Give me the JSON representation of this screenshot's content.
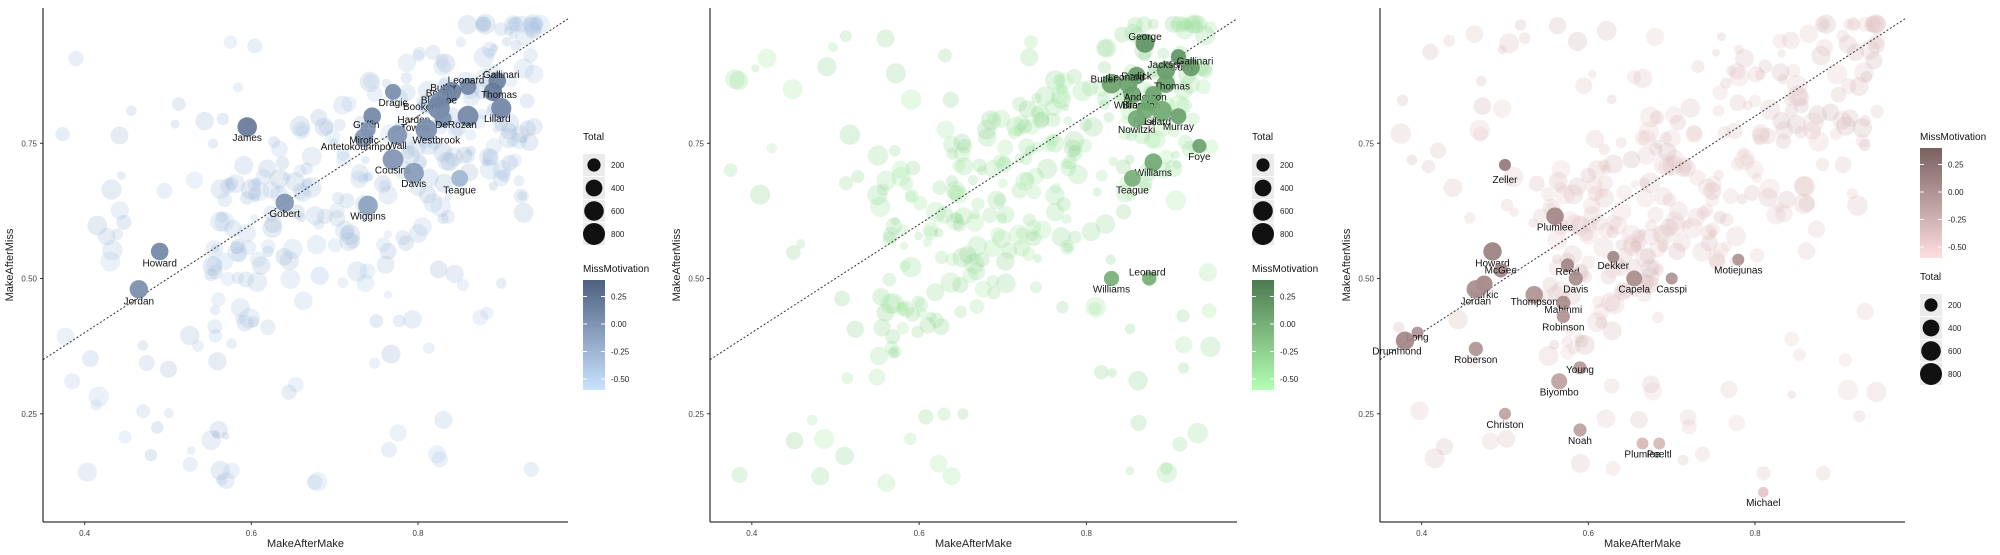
{
  "axis_labels": {
    "x": "MakeAfterMake",
    "y": "MakeAfterMiss"
  },
  "legend_titles": {
    "size": "Total",
    "color": "MissMotivation"
  },
  "chart_data": [
    {
      "type": "scatter",
      "panel": "left",
      "xlabel": "MakeAfterMake",
      "ylabel": "MakeAfterMiss",
      "xlim": [
        0.35,
        0.98
      ],
      "ylim": [
        0.05,
        1.0
      ],
      "x_ticks": [
        "0.4",
        "0.6",
        "0.8"
      ],
      "y_ticks": [
        "0.25",
        "0.50",
        "0.75"
      ],
      "reference_line": "y = x (dotted)",
      "color_scale": {
        "low": "#c9e3ff",
        "high": "#4d6080",
        "breaks": [
          "0.25",
          "0.00",
          "-0.25",
          "-0.50"
        ]
      },
      "size_breaks": [
        "200",
        "400",
        "600",
        "800"
      ],
      "legend_order": [
        "size",
        "color"
      ],
      "labeled_points": [
        {
          "label": "Gallinari",
          "x": 0.895,
          "y": 0.865,
          "total": 450,
          "motivation": 0.15
        },
        {
          "label": "Thomas",
          "x": 0.89,
          "y": 0.845,
          "total": 500,
          "motivation": 0.2
        },
        {
          "label": "Leonard",
          "x": 0.86,
          "y": 0.855,
          "total": 400,
          "motivation": 0.1
        },
        {
          "label": "Butler",
          "x": 0.84,
          "y": 0.845,
          "total": 600,
          "motivation": 0.15
        },
        {
          "label": "Bosh",
          "x": 0.835,
          "y": 0.84,
          "total": 500,
          "motivation": 0.1
        },
        {
          "label": "Bledsoe",
          "x": 0.83,
          "y": 0.835,
          "total": 300,
          "motivation": 0.1
        },
        {
          "label": "Dragic",
          "x": 0.77,
          "y": 0.845,
          "total": 350,
          "motivation": 0.05
        },
        {
          "label": "Booker",
          "x": 0.825,
          "y": 0.83,
          "total": 350,
          "motivation": 0.05
        },
        {
          "label": "Harden",
          "x": 0.825,
          "y": 0.815,
          "total": 800,
          "motivation": 0.1
        },
        {
          "label": "Towns",
          "x": 0.83,
          "y": 0.795,
          "total": 400,
          "motivation": 0.05
        },
        {
          "label": "DeRozan",
          "x": 0.86,
          "y": 0.8,
          "total": 700,
          "motivation": 0.1
        },
        {
          "label": "Lillard",
          "x": 0.9,
          "y": 0.815,
          "total": 650,
          "motivation": 0.1
        },
        {
          "label": "Westbrook",
          "x": 0.81,
          "y": 0.775,
          "total": 750,
          "motivation": 0.05
        },
        {
          "label": "James",
          "x": 0.595,
          "y": 0.78,
          "total": 600,
          "motivation": 0.2
        },
        {
          "label": "Griffin",
          "x": 0.745,
          "y": 0.8,
          "total": 450,
          "motivation": 0.1
        },
        {
          "label": "Antetokounmpo",
          "x": 0.735,
          "y": 0.76,
          "total": 500,
          "motivation": 0.0
        },
        {
          "label": "Wall",
          "x": 0.775,
          "y": 0.765,
          "total": 600,
          "motivation": 0.0
        },
        {
          "label": "Mirotic",
          "x": 0.74,
          "y": 0.775,
          "total": 300,
          "motivation": 0.0
        },
        {
          "label": "Cousins",
          "x": 0.77,
          "y": 0.72,
          "total": 700,
          "motivation": 0.0
        },
        {
          "label": "Davis",
          "x": 0.795,
          "y": 0.695,
          "total": 650,
          "motivation": -0.05
        },
        {
          "label": "Teague",
          "x": 0.85,
          "y": 0.685,
          "total": 400,
          "motivation": -0.25
        },
        {
          "label": "Gobert",
          "x": 0.64,
          "y": 0.64,
          "total": 500,
          "motivation": 0.0
        },
        {
          "label": "Wiggins",
          "x": 0.74,
          "y": 0.635,
          "total": 600,
          "motivation": -0.1
        },
        {
          "label": "Howard",
          "x": 0.49,
          "y": 0.55,
          "total": 450,
          "motivation": 0.1
        },
        {
          "label": "Jordan",
          "x": 0.465,
          "y": 0.48,
          "total": 500,
          "motivation": 0.05
        }
      ]
    },
    {
      "type": "scatter",
      "panel": "middle",
      "xlabel": "MakeAfterMake",
      "ylabel": "MakeAfterMiss",
      "xlim": [
        0.35,
        0.98
      ],
      "ylim": [
        0.05,
        1.0
      ],
      "x_ticks": [
        "0.4",
        "0.6",
        "0.8"
      ],
      "y_ticks": [
        "0.25",
        "0.50",
        "0.75"
      ],
      "reference_line": "y = x (dotted)",
      "color_scale": {
        "low": "#b3ffb3",
        "high": "#4d7a50",
        "breaks": [
          "0.25",
          "0.00",
          "-0.25",
          "-0.50"
        ]
      },
      "size_breaks": [
        "200",
        "400",
        "600",
        "800"
      ],
      "legend_order": [
        "size",
        "color"
      ],
      "labeled_points": [
        {
          "label": "George",
          "x": 0.87,
          "y": 0.935,
          "total": 550,
          "motivation": 0.2
        },
        {
          "label": "Curry",
          "x": 0.91,
          "y": 0.91,
          "total": 300,
          "motivation": 0.2
        },
        {
          "label": "Jackson",
          "x": 0.895,
          "y": 0.885,
          "total": 500,
          "motivation": 0.15
        },
        {
          "label": "Gallinari",
          "x": 0.925,
          "y": 0.89,
          "total": 450,
          "motivation": 0.15
        },
        {
          "label": "Redick",
          "x": 0.86,
          "y": 0.875,
          "total": 450,
          "motivation": 0.15
        },
        {
          "label": "Butler",
          "x": 0.83,
          "y": 0.86,
          "total": 600,
          "motivation": 0.1
        },
        {
          "label": "Leonard",
          "x": 0.85,
          "y": 0.86,
          "total": 500,
          "motivation": 0.1
        },
        {
          "label": "Thomas",
          "x": 0.895,
          "y": 0.86,
          "total": 500,
          "motivation": 0.1
        },
        {
          "label": "Williams",
          "x": 0.855,
          "y": 0.84,
          "total": 450,
          "motivation": 0.1
        },
        {
          "label": "Anderson",
          "x": 0.88,
          "y": 0.84,
          "total": 400,
          "motivation": 0.1
        },
        {
          "label": "Brogdon",
          "x": 0.875,
          "y": 0.825,
          "total": 400,
          "motivation": 0.05
        },
        {
          "label": "Rose",
          "x": 0.87,
          "y": 0.81,
          "total": 400,
          "motivation": 0.05
        },
        {
          "label": "Lillard",
          "x": 0.89,
          "y": 0.81,
          "total": 650,
          "motivation": 0.05
        },
        {
          "label": "Nowitzki",
          "x": 0.86,
          "y": 0.795,
          "total": 450,
          "motivation": 0.05
        },
        {
          "label": "Murray",
          "x": 0.91,
          "y": 0.8,
          "total": 350,
          "motivation": 0.1
        },
        {
          "label": "Foye",
          "x": 0.935,
          "y": 0.745,
          "total": 250,
          "motivation": 0.1
        },
        {
          "label": "Williams",
          "x": 0.88,
          "y": 0.715,
          "total": 450,
          "motivation": 0.05
        },
        {
          "label": "Teague",
          "x": 0.855,
          "y": 0.685,
          "total": 400,
          "motivation": 0.0
        },
        {
          "label": "Williams",
          "x": 0.83,
          "y": 0.5,
          "total": 300,
          "motivation": 0.0
        },
        {
          "label": "Leonard",
          "x": 0.875,
          "y": 0.5,
          "total": 250,
          "motivation": 0.0
        }
      ]
    },
    {
      "type": "scatter",
      "panel": "right",
      "xlabel": "MakeAfterMake",
      "ylabel": "MakeAfterMiss",
      "xlim": [
        0.35,
        0.98
      ],
      "ylim": [
        0.05,
        1.0
      ],
      "x_ticks": [
        "0.4",
        "0.6",
        "0.8"
      ],
      "y_ticks": [
        "0.25",
        "0.50",
        "0.75"
      ],
      "reference_line": "y = x (dotted)",
      "color_scale": {
        "low": "#ffdede",
        "high": "#7a6060",
        "breaks": [
          "0.25",
          "0.00",
          "-0.25",
          "-0.50"
        ]
      },
      "size_breaks": [
        "200",
        "400",
        "600",
        "800"
      ],
      "legend_order": [
        "color",
        "size"
      ],
      "labeled_points": [
        {
          "label": "Zeller",
          "x": 0.5,
          "y": 0.71,
          "total": 150,
          "motivation": 0.2
        },
        {
          "label": "Plumlee",
          "x": 0.56,
          "y": 0.615,
          "total": 450,
          "motivation": 0.1
        },
        {
          "label": "Howard",
          "x": 0.485,
          "y": 0.55,
          "total": 500,
          "motivation": 0.15
        },
        {
          "label": "McGee",
          "x": 0.495,
          "y": 0.515,
          "total": 250,
          "motivation": 0.1
        },
        {
          "label": "Reed",
          "x": 0.575,
          "y": 0.525,
          "total": 200,
          "motivation": 0.1
        },
        {
          "label": "Dekker",
          "x": 0.63,
          "y": 0.54,
          "total": 150,
          "motivation": 0.1
        },
        {
          "label": "Motiejunas",
          "x": 0.78,
          "y": 0.535,
          "total": 150,
          "motivation": 0.0
        },
        {
          "label": "Davis",
          "x": 0.585,
          "y": 0.5,
          "total": 250,
          "motivation": 0.05
        },
        {
          "label": "Nurkic",
          "x": 0.475,
          "y": 0.49,
          "total": 400,
          "motivation": 0.1
        },
        {
          "label": "Capela",
          "x": 0.655,
          "y": 0.5,
          "total": 350,
          "motivation": 0.05
        },
        {
          "label": "Casspi",
          "x": 0.7,
          "y": 0.5,
          "total": 150,
          "motivation": 0.0
        },
        {
          "label": "Jordan",
          "x": 0.465,
          "y": 0.48,
          "total": 500,
          "motivation": 0.05
        },
        {
          "label": "Thompson",
          "x": 0.535,
          "y": 0.47,
          "total": 450,
          "motivation": 0.0
        },
        {
          "label": "Mahinmi",
          "x": 0.57,
          "y": 0.455,
          "total": 250,
          "motivation": 0.05
        },
        {
          "label": "Robinson",
          "x": 0.57,
          "y": 0.43,
          "total": 200,
          "motivation": 0.0
        },
        {
          "label": "Long",
          "x": 0.395,
          "y": 0.4,
          "total": 150,
          "motivation": 0.0
        },
        {
          "label": "Drummond",
          "x": 0.38,
          "y": 0.385,
          "total": 500,
          "motivation": 0.1
        },
        {
          "label": "Roberson",
          "x": 0.465,
          "y": 0.37,
          "total": 250,
          "motivation": 0.0
        },
        {
          "label": "Young",
          "x": 0.59,
          "y": 0.335,
          "total": 200,
          "motivation": -0.05
        },
        {
          "label": "Biyombo",
          "x": 0.565,
          "y": 0.31,
          "total": 350,
          "motivation": -0.1
        },
        {
          "label": "Christon",
          "x": 0.5,
          "y": 0.25,
          "total": 150,
          "motivation": -0.1
        },
        {
          "label": "Noah",
          "x": 0.59,
          "y": 0.22,
          "total": 200,
          "motivation": -0.1
        },
        {
          "label": "Plumlee",
          "x": 0.665,
          "y": 0.195,
          "total": 150,
          "motivation": -0.3
        },
        {
          "label": "Poeltl",
          "x": 0.685,
          "y": 0.195,
          "total": 150,
          "motivation": -0.3
        },
        {
          "label": "Michael",
          "x": 0.81,
          "y": 0.105,
          "total": 100,
          "motivation": -0.4
        }
      ]
    }
  ]
}
